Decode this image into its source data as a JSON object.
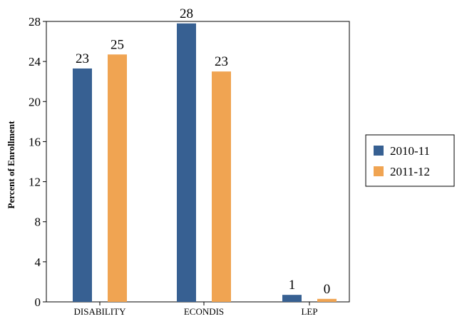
{
  "chart_data": {
    "type": "bar",
    "categories": [
      "DISABILITY",
      "ECONDIS",
      "LEP"
    ],
    "series": [
      {
        "name": "2010-11",
        "values": [
          23.3,
          27.8,
          0.7
        ],
        "labels": [
          "23",
          "28",
          "1"
        ],
        "color": "#376092"
      },
      {
        "name": "2011-12",
        "values": [
          24.7,
          23.0,
          0.3
        ],
        "labels": [
          "25",
          "23",
          "0"
        ],
        "color": "#F0A452"
      }
    ],
    "ylabel": "Percent of Enrollment",
    "xlabel": "",
    "ylim": [
      0,
      28
    ],
    "yticks": [
      0,
      4,
      8,
      12,
      16,
      20,
      24,
      28
    ],
    "grid": false,
    "legend": "right"
  }
}
